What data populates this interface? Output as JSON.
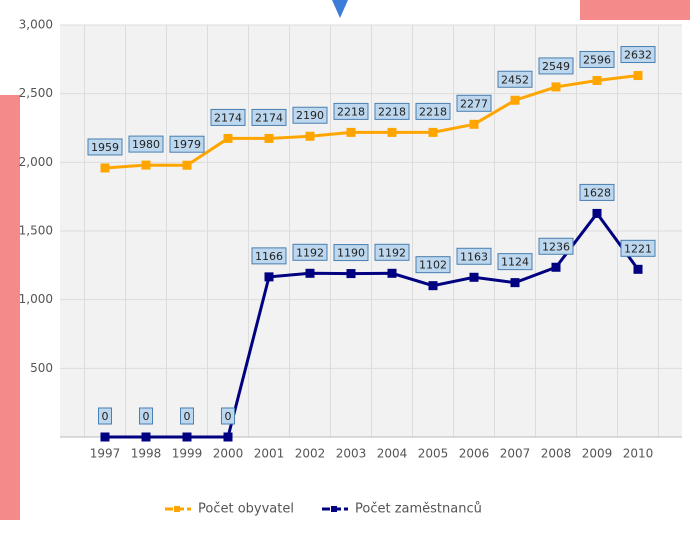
{
  "chart_data": {
    "type": "line",
    "categories": [
      "1997",
      "1998",
      "1999",
      "2000",
      "2001",
      "2002",
      "2003",
      "2004",
      "2005",
      "2006",
      "2007",
      "2008",
      "2009",
      "2010"
    ],
    "series": [
      {
        "name": "Počet obyvatel",
        "color": "#ffa500",
        "values": [
          1959,
          1980,
          1979,
          2174,
          2174,
          2190,
          2218,
          2218,
          2218,
          2277,
          2452,
          2549,
          2596,
          2632
        ]
      },
      {
        "name": "Počet zaměstnanců",
        "color": "#000080",
        "values": [
          0,
          0,
          0,
          0,
          1166,
          1192,
          1190,
          1192,
          1102,
          1163,
          1124,
          1236,
          1628,
          1221
        ]
      }
    ],
    "ylim": [
      0,
      3000
    ],
    "yticks": [
      500,
      {
        "value": 1000,
        "label": "1,000"
      },
      {
        "value": 1500,
        "label": "1,500"
      },
      {
        "value": 2000,
        "label": "2,000"
      },
      {
        "value": 2500,
        "label": "2,500"
      },
      {
        "value": 3000,
        "label": "3,000"
      }
    ],
    "grid": true,
    "legend": "bottom"
  }
}
